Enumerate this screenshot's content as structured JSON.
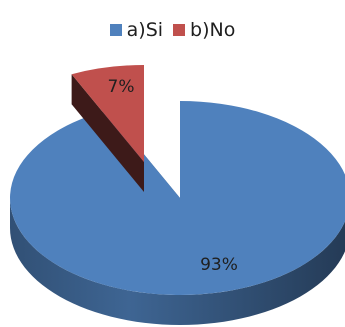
{
  "chart_data": {
    "type": "pie",
    "title": "",
    "legend_position": "top",
    "slices": [
      {
        "label": "a)Si",
        "value": 93,
        "value_label": "93%",
        "color": "#4f81bd"
      },
      {
        "label": "b)No",
        "value": 7,
        "value_label": "7%",
        "color": "#c0504d"
      }
    ]
  }
}
